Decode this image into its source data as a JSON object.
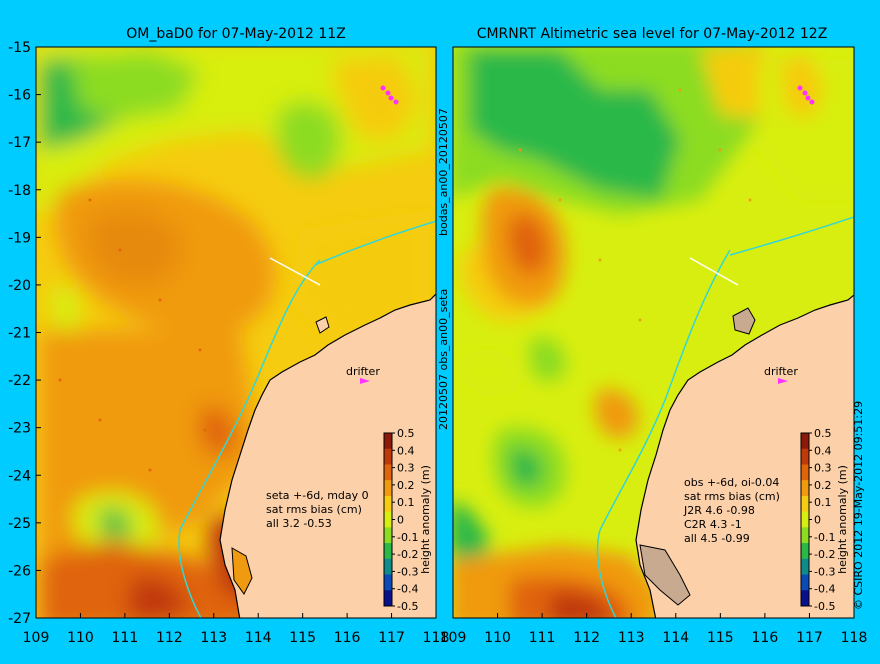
{
  "background_color": "#00ccff",
  "land_color": "#fcd0a8",
  "coast_color": "#000000",
  "track_color": "#33d6d6",
  "drifter_color": "#ff33ff",
  "lat_ticks": [
    "-15",
    "-16",
    "-17",
    "-18",
    "-19",
    "-20",
    "-21",
    "-22",
    "-23",
    "-24",
    "-25",
    "-26",
    "-27"
  ],
  "lon_ticks": [
    "109",
    "110",
    "111",
    "112",
    "113",
    "114",
    "115",
    "116",
    "117",
    "118"
  ],
  "colorbar": {
    "label": "height anomaly (m)",
    "ticks": [
      "0.5",
      "0.4",
      "0.3",
      "0.2",
      "0.1",
      "0",
      "-0.1",
      "-0.2",
      "-0.3",
      "-0.4",
      "-0.5"
    ],
    "colors": [
      "#8b1a0a",
      "#c0390a",
      "#e0640a",
      "#f09a10",
      "#f5cc10",
      "#d8ee10",
      "#8cdc22",
      "#2ab848",
      "#0e8c8c",
      "#0c4ab8",
      "#08108c"
    ]
  },
  "left_panel": {
    "title": "OM_baD0 for 07-May-2012 11Z",
    "drifter_label": "drifter",
    "legend": [
      "seta +-6d, mday 0",
      "sat rms bias (cm)",
      "all 3.2 -0.53"
    ]
  },
  "right_panel": {
    "title": "CMRNRT Altimetric sea level  for 07-May-2012 12Z",
    "drifter_label": "drifter",
    "legend": [
      "obs +-6d, oi-0.04",
      "sat rms bias (cm)",
      "J2R  4.6 -0.98",
      "C2R  4.3 -1",
      "all 4.5 -0.99"
    ]
  },
  "side_labels": {
    "middle_top": "bodas_an00_20120507",
    "middle_bottom": "20120507 obs_an00_seta",
    "right_credit": "© CSIRO 2012  19-May-2012 09:51:29"
  }
}
